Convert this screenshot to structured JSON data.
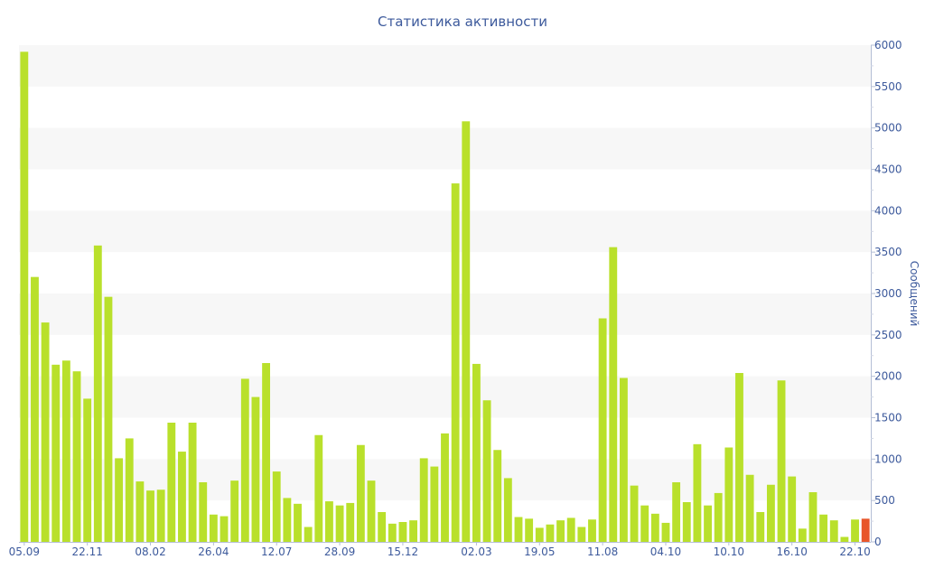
{
  "chart_data": {
    "type": "bar",
    "title": "Статистика активности",
    "ylabel": "Сообщений",
    "ylim": [
      0,
      6000
    ],
    "y_ticks": [
      0,
      500,
      1000,
      1500,
      2000,
      2500,
      3000,
      3500,
      4000,
      4500,
      5000,
      5500,
      6000
    ],
    "x_tick_labels": [
      "05.09",
      "22.11",
      "08.02",
      "26.04",
      "12.07",
      "28.09",
      "15.12",
      "02.03",
      "19.05",
      "11.08",
      "04.10",
      "10.10",
      "16.10",
      "22.10"
    ],
    "y_axis_position": "right",
    "grid": "alternating horizontal bands",
    "colors": {
      "bar": "#b9e02b",
      "highlight": "#e8562a",
      "text": "#3d5a9c",
      "band": "#f7f7f7"
    },
    "highlight_index": 80,
    "values": [
      5920,
      3200,
      2650,
      2140,
      2190,
      2060,
      1730,
      3580,
      2960,
      1010,
      1250,
      730,
      620,
      630,
      1440,
      1090,
      1440,
      720,
      330,
      310,
      740,
      1970,
      1750,
      2160,
      850,
      530,
      460,
      180,
      1290,
      490,
      440,
      470,
      1170,
      740,
      360,
      220,
      240,
      260,
      1010,
      910,
      1310,
      4330,
      5080,
      2150,
      1710,
      1110,
      770,
      300,
      280,
      170,
      210,
      260,
      290,
      180,
      270,
      2700,
      3560,
      1980,
      680,
      440,
      340,
      230,
      720,
      480,
      1180,
      440,
      590,
      1140,
      2040,
      810,
      360,
      690,
      1950,
      790,
      160,
      600,
      330,
      260,
      60,
      270,
      280
    ]
  }
}
